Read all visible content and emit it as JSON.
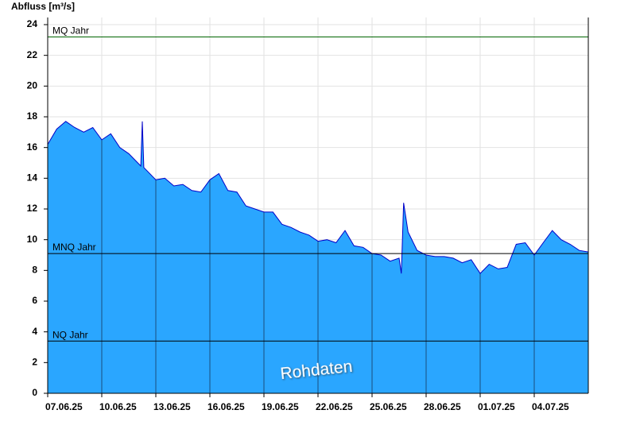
{
  "chart_data": {
    "type": "area",
    "title": "Abfluss [m³/s]",
    "x": [
      "07.06.25 00:00",
      "07.06.25 12:00",
      "08.06.25 00:00",
      "08.06.25 12:00",
      "09.06.25 00:00",
      "09.06.25 12:00",
      "10.06.25 00:00",
      "10.06.25 12:00",
      "11.06.25 00:00",
      "11.06.25 12:00",
      "12.06.25 00:00",
      "12.06.25 04:00",
      "12.06.25 06:00",
      "12.06.25 08:00",
      "12.06.25 12:00",
      "13.06.25 00:00",
      "13.06.25 12:00",
      "14.06.25 00:00",
      "14.06.25 12:00",
      "15.06.25 00:00",
      "15.06.25 12:00",
      "16.06.25 00:00",
      "16.06.25 12:00",
      "17.06.25 00:00",
      "17.06.25 12:00",
      "18.06.25 00:00",
      "18.06.25 12:00",
      "19.06.25 00:00",
      "19.06.25 12:00",
      "20.06.25 00:00",
      "20.06.25 12:00",
      "21.06.25 00:00",
      "21.06.25 12:00",
      "22.06.25 00:00",
      "22.06.25 12:00",
      "23.06.25 00:00",
      "23.06.25 12:00",
      "24.06.25 00:00",
      "24.06.25 12:00",
      "25.06.25 00:00",
      "25.06.25 12:00",
      "26.06.25 00:00",
      "26.06.25 12:00",
      "26.06.25 15:00",
      "26.06.25 18:00",
      "27.06.25 00:00",
      "27.06.25 12:00",
      "28.06.25 00:00",
      "28.06.25 12:00",
      "29.06.25 00:00",
      "29.06.25 12:00",
      "30.06.25 00:00",
      "30.06.25 12:00",
      "01.07.25 00:00",
      "01.07.25 12:00",
      "02.07.25 00:00",
      "02.07.25 12:00",
      "03.07.25 00:00",
      "03.07.25 12:00",
      "04.07.25 00:00",
      "04.07.25 12:00",
      "05.07.25 00:00",
      "05.07.25 12:00",
      "06.07.25 00:00",
      "06.07.25 12:00",
      "07.07.25 00:00"
    ],
    "series": [
      {
        "name": "Rohdaten",
        "color": "#2aa6ff",
        "line_color": "#0000c8",
        "values": [
          16.2,
          17.2,
          17.7,
          17.3,
          17.0,
          17.3,
          16.5,
          16.9,
          16.0,
          15.6,
          15.0,
          14.8,
          17.7,
          14.7,
          14.5,
          13.9,
          14.0,
          13.5,
          13.6,
          13.2,
          13.1,
          13.9,
          14.3,
          13.2,
          13.1,
          12.2,
          12.0,
          11.8,
          11.8,
          11.0,
          10.8,
          10.5,
          10.3,
          9.9,
          10.0,
          9.8,
          10.6,
          9.6,
          9.5,
          9.1,
          9.0,
          8.6,
          8.8,
          7.8,
          12.4,
          10.5,
          9.3,
          9.0,
          8.9,
          8.9,
          8.8,
          8.5,
          8.7,
          7.8,
          8.4,
          8.1,
          8.2,
          9.7,
          9.8,
          9.0,
          9.8,
          10.6,
          10.0,
          9.7,
          9.3,
          9.2
        ]
      }
    ],
    "xlim": [
      "07.06.25 00:00",
      "07.07.25 00:00"
    ],
    "xticks": [
      "07.06.25",
      "10.06.25",
      "13.06.25",
      "16.06.25",
      "19.06.25",
      "22.06.25",
      "25.06.25",
      "28.06.25",
      "01.07.25",
      "04.07.25"
    ],
    "ylim": [
      0,
      24
    ],
    "yticks": [
      0,
      2,
      4,
      6,
      8,
      10,
      12,
      14,
      16,
      18,
      20,
      22,
      24
    ],
    "grid": true,
    "reference_lines": [
      {
        "label": "MQ Jahr",
        "value": 23.2,
        "color": "#006400"
      },
      {
        "label": "MNQ Jahr",
        "value": 9.1,
        "color": "#000000"
      },
      {
        "label": "NQ Jahr",
        "value": 3.4,
        "color": "#000000"
      }
    ]
  }
}
